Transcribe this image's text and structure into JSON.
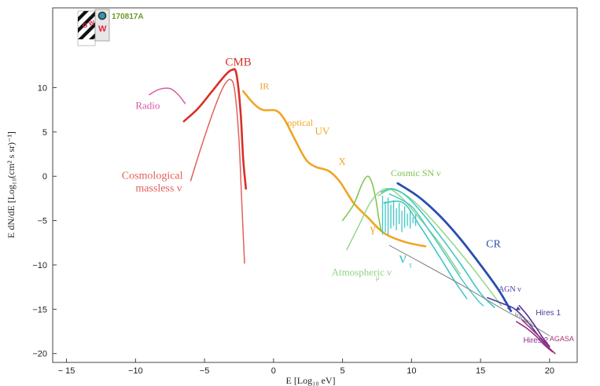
{
  "chart_data": {
    "type": "line",
    "title": "",
    "xlabel": "E [Log₁₀ eV]",
    "ylabel": "E dN/dE [Log₁₀(cm² s sr)⁻¹]",
    "xlim": [
      -16,
      22
    ],
    "ylim": [
      -21,
      19
    ],
    "x_ticks": [
      -15,
      -10,
      -5,
      0,
      5,
      10,
      15,
      20
    ],
    "y_ticks": [
      10,
      5,
      0,
      -5,
      -10,
      -15,
      -20
    ],
    "x_tick_labels": [
      "− 15",
      "−10",
      "−5",
      "0",
      "5",
      "10",
      "15",
      "20"
    ],
    "y_tick_labels": [
      "10",
      "5",
      "0",
      "−5",
      "−10",
      "−15",
      "−20"
    ],
    "badge": {
      "gw_text": "G W",
      "w_text": "W",
      "event": "170817A"
    },
    "series": [
      {
        "name": "CMB",
        "color": "#d9302a",
        "width": 2.6,
        "points": [
          [
            -6.5,
            6.2
          ],
          [
            -5.5,
            7.6
          ],
          [
            -4.5,
            9.5
          ],
          [
            -3.5,
            11.4
          ],
          [
            -3.0,
            12.0
          ],
          [
            -2.7,
            11.6
          ],
          [
            -2.4,
            7.5
          ],
          [
            -2.2,
            2.0
          ],
          [
            -2.0,
            -1.4
          ]
        ]
      },
      {
        "name": "Cosmological massless ν",
        "color": "#e2605c",
        "width": 1.5,
        "points": [
          [
            -6.0,
            -0.5
          ],
          [
            -5.2,
            3.5
          ],
          [
            -4.2,
            8.0
          ],
          [
            -3.6,
            10.2
          ],
          [
            -3.1,
            10.9
          ],
          [
            -2.8,
            9.5
          ],
          [
            -2.5,
            4.0
          ],
          [
            -2.3,
            -3.0
          ],
          [
            -2.1,
            -9.8
          ]
        ]
      },
      {
        "name": "Radio",
        "color": "#d65aa8",
        "width": 1.5,
        "points": [
          [
            -9.0,
            9.2
          ],
          [
            -8.3,
            9.8
          ],
          [
            -7.5,
            9.9
          ],
          [
            -6.9,
            9.2
          ],
          [
            -6.4,
            8.2
          ]
        ]
      },
      {
        "name": "IR-optical-UV-X-γ",
        "color": "#f0a524",
        "width": 2.6,
        "points": [
          [
            -2.2,
            9.6
          ],
          [
            -1.5,
            8.3
          ],
          [
            -0.8,
            7.5
          ],
          [
            0.2,
            7.4
          ],
          [
            0.8,
            6.4
          ],
          [
            1.4,
            4.6
          ],
          [
            2.3,
            2.0
          ],
          [
            3.0,
            1.1
          ],
          [
            4.0,
            0.6
          ],
          [
            4.8,
            -0.6
          ],
          [
            5.8,
            -3.0
          ],
          [
            6.8,
            -4.6
          ],
          [
            8.0,
            -6.4
          ],
          [
            9.5,
            -7.4
          ],
          [
            11.0,
            -7.9
          ]
        ]
      },
      {
        "name": "Cosmic SN ν",
        "color": "#7cc24a",
        "width": 1.5,
        "points": [
          [
            5.0,
            -5.0
          ],
          [
            5.8,
            -3.2
          ],
          [
            6.4,
            -0.9
          ],
          [
            6.8,
            0.0
          ],
          [
            7.1,
            -0.6
          ],
          [
            7.4,
            -2.5
          ],
          [
            7.6,
            -4.5
          ],
          [
            7.8,
            -6.2
          ]
        ]
      },
      {
        "name": "Atmospheric ν_μ (inner)",
        "color": "#8ed483",
        "width": 1.4,
        "points": [
          [
            5.3,
            -8.3
          ],
          [
            6.2,
            -5.5
          ],
          [
            7.0,
            -3.0
          ],
          [
            7.8,
            -1.6
          ],
          [
            8.5,
            -1.5
          ],
          [
            9.4,
            -2.6
          ],
          [
            10.5,
            -4.6
          ],
          [
            12.0,
            -7.5
          ],
          [
            13.5,
            -11.0
          ]
        ]
      },
      {
        "name": "Atmospheric ν_μ (outer)",
        "color": "#8ed483",
        "width": 1.4,
        "points": [
          [
            7.6,
            -2.2
          ],
          [
            8.6,
            -1.5
          ],
          [
            10.0,
            -2.6
          ],
          [
            12.0,
            -5.8
          ],
          [
            14.5,
            -10.5
          ],
          [
            16.5,
            -14.6
          ]
        ]
      },
      {
        "name": "ν_τ (upper)",
        "color": "#3ec7c7",
        "width": 1.6,
        "points": [
          [
            7.8,
            -1.8
          ],
          [
            8.6,
            -1.4
          ],
          [
            9.6,
            -2.2
          ],
          [
            10.8,
            -4.2
          ],
          [
            12.2,
            -7.0
          ],
          [
            13.6,
            -10.0
          ],
          [
            15.0,
            -13.2
          ],
          [
            16.0,
            -14.8
          ]
        ]
      },
      {
        "name": "ν_τ (lower)",
        "color": "#3ec7c7",
        "width": 1.6,
        "points": [
          [
            8.0,
            -3.0
          ],
          [
            9.4,
            -3.0
          ],
          [
            10.6,
            -5.6
          ],
          [
            12.0,
            -9.0
          ],
          [
            13.2,
            -12.0
          ],
          [
            14.0,
            -13.8
          ]
        ]
      },
      {
        "name": "ν_τ (middle)",
        "color": "#3ec7c7",
        "width": 1.4,
        "points": [
          [
            8.4,
            -2.0
          ],
          [
            10.0,
            -3.4
          ],
          [
            11.4,
            -6.4
          ],
          [
            12.6,
            -9.2
          ],
          [
            13.8,
            -12.0
          ],
          [
            14.8,
            -14.0
          ],
          [
            15.2,
            -14.6
          ]
        ]
      },
      {
        "name": "CR",
        "color": "#2a4fae",
        "width": 2.8,
        "points": [
          [
            9.0,
            -0.8
          ],
          [
            10.5,
            -2.3
          ],
          [
            12.0,
            -4.4
          ],
          [
            13.5,
            -7.0
          ],
          [
            15.0,
            -10.0
          ],
          [
            16.3,
            -12.8
          ],
          [
            17.2,
            -15.2
          ]
        ]
      },
      {
        "name": "WB limit",
        "color": "#808080",
        "width": 1.0,
        "points": [
          [
            8.4,
            -7.8
          ],
          [
            11.0,
            -10.0
          ],
          [
            14.0,
            -12.6
          ],
          [
            16.5,
            -14.9
          ],
          [
            18.5,
            -16.6
          ],
          [
            20.0,
            -18.0
          ]
        ]
      },
      {
        "name": "AGN ν",
        "color": "#4a3b9c",
        "width": 1.6,
        "points": [
          [
            15.5,
            -13.7
          ],
          [
            16.5,
            -14.3
          ],
          [
            17.5,
            -15.0
          ],
          [
            18.5,
            -16.6
          ],
          [
            19.5,
            -18.6
          ],
          [
            20.1,
            -19.6
          ]
        ]
      },
      {
        "name": "Hires 1",
        "color": "#5a2e92",
        "width": 1.6,
        "points": [
          [
            17.8,
            -14.6
          ],
          [
            18.4,
            -15.7
          ],
          [
            19.0,
            -17.0
          ],
          [
            19.5,
            -18.2
          ],
          [
            20.0,
            -19.2
          ]
        ]
      },
      {
        "name": "Hires 2",
        "color": "#8e2a8a",
        "width": 1.6,
        "points": [
          [
            17.6,
            -16.4
          ],
          [
            18.3,
            -17.1
          ],
          [
            19.0,
            -18.0
          ],
          [
            19.6,
            -19.0
          ],
          [
            20.2,
            -19.8
          ]
        ]
      },
      {
        "name": "AGASA",
        "color": "#a83273",
        "width": 1.6,
        "points": [
          [
            18.0,
            -16.2
          ],
          [
            18.8,
            -17.4
          ],
          [
            19.4,
            -18.3
          ],
          [
            20.0,
            -19.4
          ],
          [
            20.4,
            -20.0
          ]
        ]
      }
    ],
    "spikes": {
      "color": "#3ec7c7",
      "x": [
        7.9,
        8.1,
        8.3,
        8.5,
        8.7,
        8.9,
        9.1,
        9.3,
        9.5,
        9.7,
        9.9,
        10.1,
        10.3
      ],
      "y_top": [
        -2.2,
        -2.8,
        -2.4,
        -3.2,
        -2.7,
        -3.6,
        -3.0,
        -3.9,
        -3.4,
        -4.2,
        -3.8,
        -4.6,
        -4.3
      ],
      "y_bottom": [
        -6.6,
        -6.3,
        -6.6,
        -5.9,
        -5.6,
        -6.1,
        -5.4,
        -6.3,
        -5.8,
        -5.6,
        -5.9,
        -5.3,
        -5.6
      ]
    },
    "annotations": [
      {
        "id": "cmb",
        "text": "CMB",
        "x": -3.5,
        "y": 12.5,
        "color": "#d9302a",
        "size": 15,
        "font": "serif"
      },
      {
        "id": "radio",
        "text": "Radio",
        "x": -10.0,
        "y": 7.6,
        "color": "#d65aa8",
        "size": 13,
        "font": "serif"
      },
      {
        "id": "ir",
        "text": "IR",
        "x": -1.0,
        "y": 9.8,
        "color": "#f0a524",
        "size": 12,
        "font": "serif"
      },
      {
        "id": "optical",
        "text": "optical",
        "x": 1.0,
        "y": 5.7,
        "color": "#f0a524",
        "size": 12,
        "font": "serif"
      },
      {
        "id": "uv",
        "text": "UV",
        "x": 3.0,
        "y": 4.7,
        "color": "#f0a524",
        "size": 13,
        "font": "serif"
      },
      {
        "id": "xray",
        "text": "X",
        "x": 4.7,
        "y": 1.3,
        "color": "#f0a524",
        "size": 13,
        "font": "serif"
      },
      {
        "id": "gamma",
        "text": "γ",
        "x": 7.0,
        "y": -6.3,
        "color": "#f0a524",
        "size": 15,
        "font": "serif"
      },
      {
        "id": "cosmic-sn",
        "text": "Cosmic SN ν",
        "x": 8.5,
        "y": 0.0,
        "color": "#7cc24a",
        "size": 12,
        "font": "serif"
      },
      {
        "id": "atmospheric",
        "text": "Atmospheric ν",
        "x": 4.2,
        "y": -11.2,
        "color": "#8ed483",
        "size": 13,
        "font": "serif"
      },
      {
        "id": "atmospheric-sub",
        "text": "μ",
        "x": 7.4,
        "y": -11.7,
        "color": "#8ed483",
        "size": 9,
        "font": "serif"
      },
      {
        "id": "nu-tau",
        "text": "ν",
        "x": 9.1,
        "y": -9.8,
        "color": "#3ec7c7",
        "size": 20,
        "font": "serif"
      },
      {
        "id": "nu-tau-sub",
        "text": "τ",
        "x": 9.8,
        "y": -10.3,
        "color": "#3ec7c7",
        "size": 11,
        "font": "serif"
      },
      {
        "id": "cr",
        "text": "CR",
        "x": 15.4,
        "y": -8.0,
        "color": "#2a4fae",
        "size": 14,
        "font": "serif"
      },
      {
        "id": "agn",
        "text": "AGN ν",
        "x": 16.3,
        "y": -13.0,
        "color": "#4a3b9c",
        "size": 10,
        "font": "serif"
      },
      {
        "id": "wb",
        "text": "WB limit",
        "x": 17.4,
        "y": -15.7,
        "color": "#808080",
        "size": 7,
        "font": "serif",
        "rotate": 28
      },
      {
        "id": "hires1",
        "text": "Hires 1",
        "x": 19.0,
        "y": -15.7,
        "color": "#4a3b9c",
        "size": 10,
        "font": "sans"
      },
      {
        "id": "hires2",
        "text": "Hires 2",
        "x": 18.1,
        "y": -18.8,
        "color": "#8e2a8a",
        "size": 10,
        "font": "sans"
      },
      {
        "id": "agasa",
        "text": "AGASA",
        "x": 20.0,
        "y": -18.6,
        "color": "#a83273",
        "size": 9,
        "font": "sans"
      },
      {
        "id": "cosmo-line1",
        "text": "Cosmological",
        "x": -11.0,
        "y": -0.3,
        "color": "#e2605c",
        "size": 14,
        "font": "serif"
      },
      {
        "id": "cosmo-line2",
        "text": "massless ν",
        "x": -10.0,
        "y": -1.7,
        "color": "#e2605c",
        "size": 14,
        "font": "serif"
      }
    ]
  }
}
